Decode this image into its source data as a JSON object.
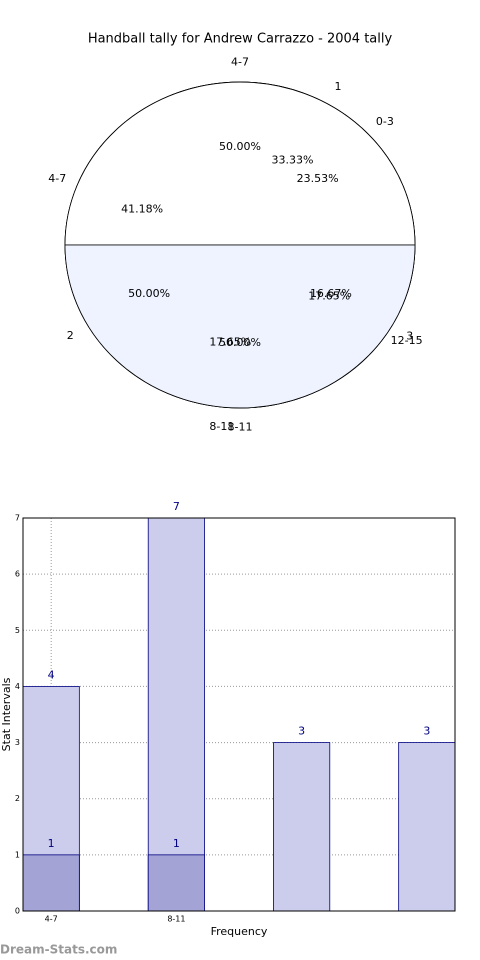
{
  "chart_data": [
    {
      "type": "pie",
      "title": "Handball tally for Andrew Carrazzo - 2004 tally",
      "pies": [
        {
          "labels": [
            "0-3",
            "4-7",
            "8-11",
            "12-15"
          ],
          "values": [
            23.53,
            41.18,
            17.65,
            17.65
          ],
          "value_labels": [
            "23.53%",
            "41.18%",
            "17.65%",
            "17.65%"
          ],
          "colors": [
            "#ffffff",
            "#ffffff",
            "#eef3ff",
            "#c8d4f0"
          ]
        },
        {
          "labels": [
            "1",
            "2",
            "3"
          ],
          "values": [
            33.33,
            50,
            16.67
          ],
          "value_labels": [
            "33.33%",
            "50.00%",
            "16.67%"
          ],
          "colors": [
            "#ffffff",
            "#eef3ff",
            "#c8d4f0"
          ]
        },
        {
          "labels": [
            "4-7",
            "8-11"
          ],
          "values": [
            50,
            50
          ],
          "value_labels": [
            "50.00%",
            "50.00%"
          ],
          "colors": [
            "#ffffff",
            "#eef3ff"
          ]
        }
      ]
    },
    {
      "type": "bar",
      "overlap": true,
      "categories": [
        "4-7",
        "8-11",
        null,
        null
      ],
      "series": [
        {
          "color": "#ccccec",
          "values": [
            4,
            7,
            3,
            3
          ]
        },
        {
          "color": "#a3a3d6",
          "values": [
            1,
            1,
            null,
            null
          ]
        }
      ],
      "x_label": "Frequency",
      "y_label": "Stat Intervals",
      "ylim": [
        0,
        7
      ],
      "yticks": [
        0,
        1,
        2,
        3,
        4,
        5,
        6,
        7
      ],
      "grid": true
    }
  ],
  "watermark": "Dream-Stats.com"
}
